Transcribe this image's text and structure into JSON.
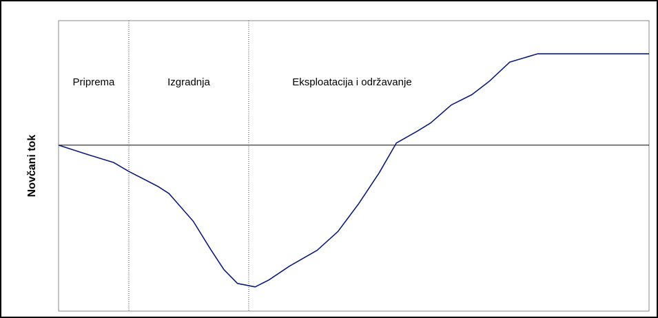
{
  "chart_data": {
    "type": "line",
    "ylabel": "Novčani tok",
    "phases": [
      "Priprema",
      "Izgradnja",
      "Eksploatacija i održavanje"
    ],
    "phase_boundaries": [
      11.9,
      32.2
    ],
    "xlim": [
      0,
      100
    ],
    "ylim": [
      -24,
      18
    ],
    "zero_line": 0,
    "series": [
      {
        "color": "#0a1a7a",
        "x": [
          0,
          4.7,
          9.3,
          11.9,
          16.9,
          18.7,
          22.8,
          25.7,
          28,
          30.3,
          33.3,
          35.6,
          39.1,
          43.8,
          47.3,
          50.8,
          54.3,
          57.2,
          60.7,
          63,
          66.5,
          70,
          72.9,
          76.4,
          81.1,
          100
        ],
        "values": [
          0,
          -1.3,
          -2.5,
          -3.8,
          -6,
          -7,
          -11,
          -15,
          -18,
          -20,
          -20.5,
          -19.5,
          -17.5,
          -15.2,
          -12.5,
          -8.5,
          -4,
          0.3,
          2,
          3.2,
          5.8,
          7.3,
          9.2,
          12,
          13.2,
          13.2
        ]
      }
    ]
  }
}
